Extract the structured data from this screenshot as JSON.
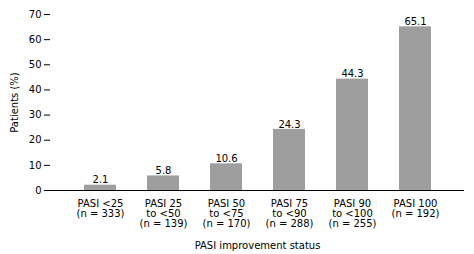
{
  "chart_data": {
    "type": "bar",
    "categories": [
      "PASI <25\n(n = 333)",
      "PASI 25\nto <50\n(n = 139)",
      "PASI 50\nto <75\n(n = 170)",
      "PASI 75\nto <90\n(n = 288)",
      "PASI 90\nto <100\n(n = 255)",
      "PASI 100\n(n = 192)"
    ],
    "values": [
      2.1,
      5.8,
      10.6,
      24.3,
      44.3,
      65.1
    ],
    "color": "#9e9e9e",
    "xlabel": "PASI improvement status",
    "ylabel": "Patients (%)",
    "ylim": [
      0,
      70
    ],
    "yticks": [
      0,
      10,
      20,
      30,
      40,
      50,
      60,
      70
    ],
    "grid": false,
    "data_labels": true
  }
}
